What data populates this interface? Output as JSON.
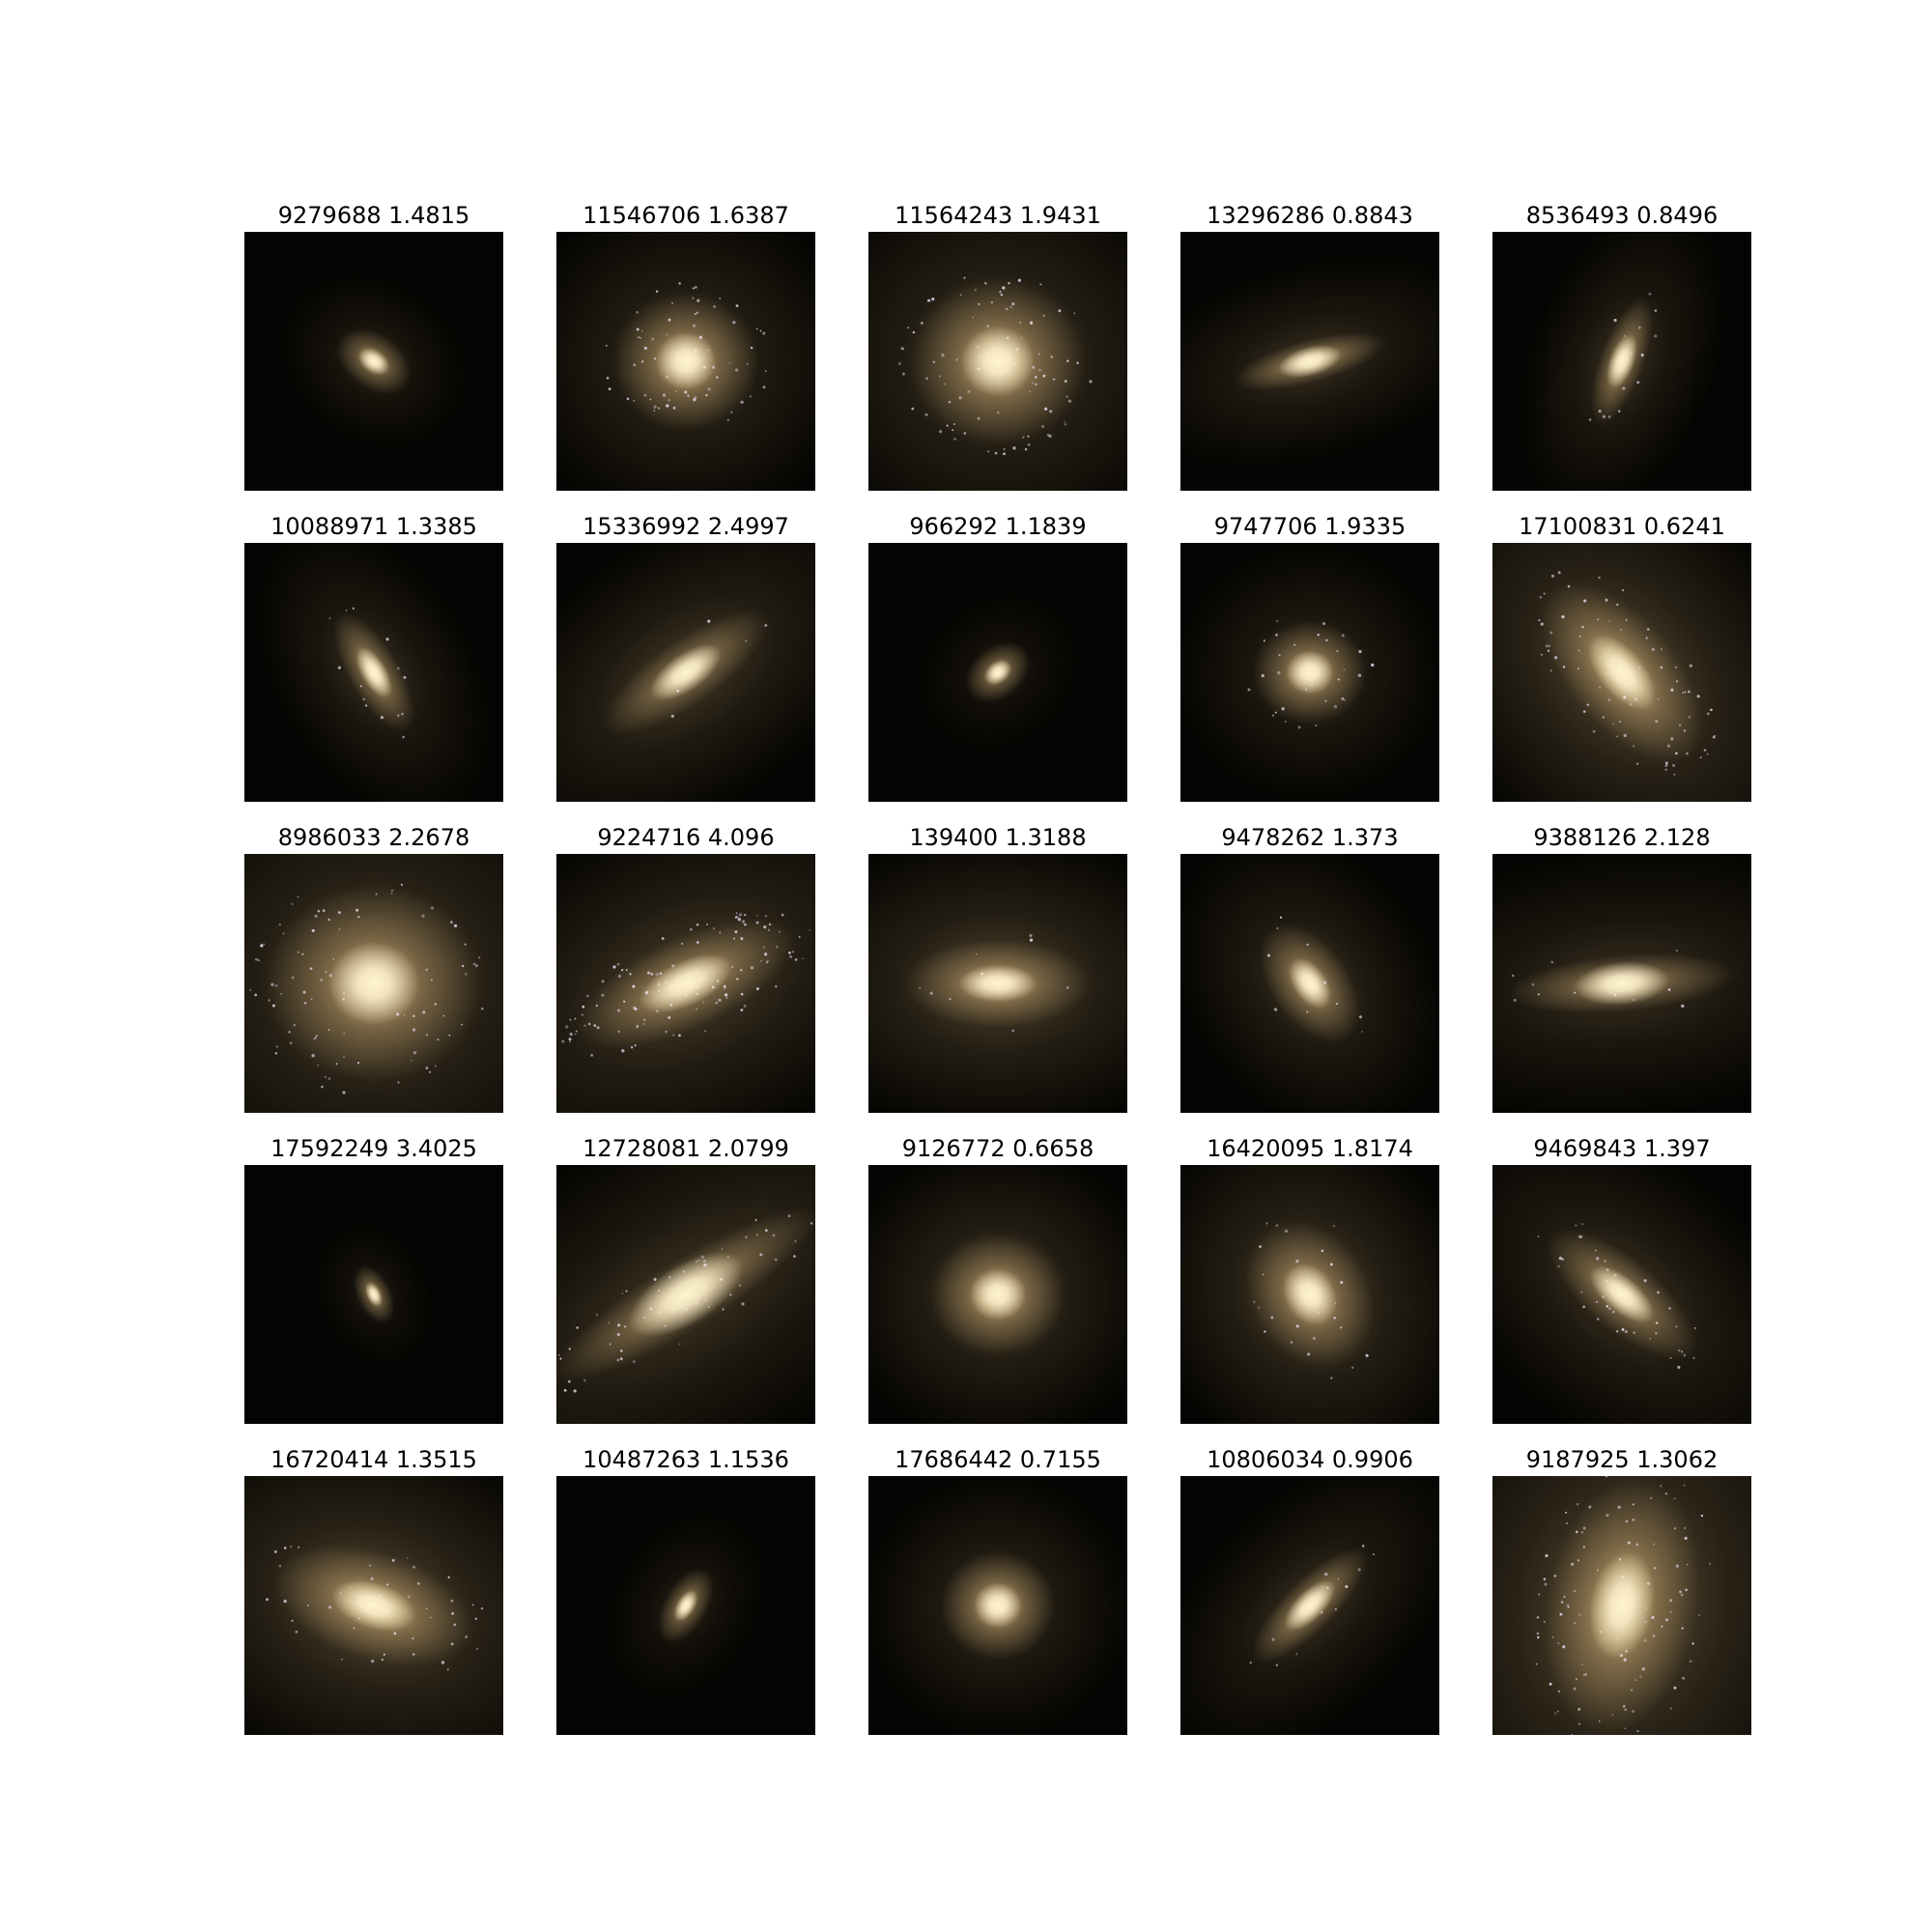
{
  "figure": {
    "columns": 5,
    "background_color": "#ffffff",
    "image_background_color": "#050402",
    "galaxy_core_color": "#fff4d0",
    "galaxy_glow_color": "#d8b67c",
    "star_cluster_color": "#e8dcf0"
  },
  "panels": [
    {
      "title": "9279688 1.4815",
      "galaxy": {
        "angle": -35,
        "size": 0.16,
        "elongation": 1.5,
        "brightness": 0.9,
        "halo": 0.35,
        "clumps": 0
      }
    },
    {
      "title": "11546706 1.6387",
      "galaxy": {
        "angle": 0,
        "size": 0.28,
        "elongation": 1.05,
        "brightness": 1.0,
        "halo": 0.55,
        "clumps": 70
      }
    },
    {
      "title": "11564243 1.9431",
      "galaxy": {
        "angle": 0,
        "size": 0.34,
        "elongation": 1.05,
        "brightness": 1.0,
        "halo": 0.6,
        "clumps": 90
      }
    },
    {
      "title": "13296286 0.8843",
      "galaxy": {
        "angle": 15,
        "size": 0.3,
        "elongation": 3.6,
        "brightness": 0.95,
        "halo": 0.45,
        "clumps": 0
      }
    },
    {
      "title": "8536493 0.8496",
      "galaxy": {
        "angle": 70,
        "size": 0.26,
        "elongation": 3.0,
        "brightness": 0.95,
        "halo": 0.45,
        "clumps": 15
      }
    },
    {
      "title": "10088971 1.3385",
      "galaxy": {
        "angle": -60,
        "size": 0.26,
        "elongation": 2.6,
        "brightness": 0.95,
        "halo": 0.45,
        "clumps": 15
      }
    },
    {
      "title": "15336992 2.4997",
      "galaxy": {
        "angle": 35,
        "size": 0.38,
        "elongation": 3.0,
        "brightness": 0.8,
        "halo": 0.55,
        "clumps": 5
      }
    },
    {
      "title": "966292 1.1839",
      "galaxy": {
        "angle": 40,
        "size": 0.14,
        "elongation": 1.4,
        "brightness": 0.9,
        "halo": 0.25,
        "clumps": 0
      }
    },
    {
      "title": "9747706 1.9335",
      "galaxy": {
        "angle": 0,
        "size": 0.22,
        "elongation": 1.1,
        "brightness": 1.0,
        "halo": 0.45,
        "clumps": 30
      }
    },
    {
      "title": "17100831 0.6241",
      "galaxy": {
        "angle": -50,
        "size": 0.42,
        "elongation": 2.0,
        "brightness": 1.0,
        "halo": 0.7,
        "clumps": 80
      }
    },
    {
      "title": "8986033 2.2678",
      "galaxy": {
        "angle": 0,
        "size": 0.42,
        "elongation": 1.1,
        "brightness": 0.95,
        "halo": 0.65,
        "clumps": 90
      }
    },
    {
      "title": "9224716 4.096",
      "galaxy": {
        "angle": 25,
        "size": 0.46,
        "elongation": 2.6,
        "brightness": 0.95,
        "halo": 0.6,
        "clumps": 120
      }
    },
    {
      "title": "139400 1.3188",
      "galaxy": {
        "angle": 0,
        "size": 0.36,
        "elongation": 2.1,
        "brightness": 0.95,
        "halo": 0.65,
        "clumps": 10
      }
    },
    {
      "title": "9478262 1.373",
      "galaxy": {
        "angle": -55,
        "size": 0.26,
        "elongation": 1.7,
        "brightness": 0.95,
        "halo": 0.5,
        "clumps": 10
      }
    },
    {
      "title": "9388126 2.128",
      "galaxy": {
        "angle": 5,
        "size": 0.44,
        "elongation": 4.0,
        "brightness": 0.85,
        "halo": 0.45,
        "clumps": 12
      }
    },
    {
      "title": "17592249 3.4025",
      "galaxy": {
        "angle": -65,
        "size": 0.12,
        "elongation": 1.8,
        "brightness": 0.9,
        "halo": 0.25,
        "clumps": 0
      }
    },
    {
      "title": "12728081 2.0799",
      "galaxy": {
        "angle": 32,
        "size": 0.6,
        "elongation": 4.5,
        "brightness": 0.85,
        "halo": 0.5,
        "clumps": 60
      }
    },
    {
      "title": "9126772 0.6658",
      "galaxy": {
        "angle": 0,
        "size": 0.26,
        "elongation": 1.1,
        "brightness": 1.0,
        "halo": 0.6,
        "clumps": 0
      }
    },
    {
      "title": "16420095 1.8174",
      "galaxy": {
        "angle": -60,
        "size": 0.3,
        "elongation": 1.3,
        "brightness": 0.95,
        "halo": 0.65,
        "clumps": 25
      }
    },
    {
      "title": "9469843 1.397",
      "galaxy": {
        "angle": -40,
        "size": 0.36,
        "elongation": 2.6,
        "brightness": 0.9,
        "halo": 0.5,
        "clumps": 40
      }
    },
    {
      "title": "16720414 1.3515",
      "galaxy": {
        "angle": -18,
        "size": 0.4,
        "elongation": 1.9,
        "brightness": 1.0,
        "halo": 0.7,
        "clumps": 45
      }
    },
    {
      "title": "10487263 1.1536",
      "galaxy": {
        "angle": 60,
        "size": 0.16,
        "elongation": 1.9,
        "brightness": 0.9,
        "halo": 0.3,
        "clumps": 0
      }
    },
    {
      "title": "17686442 0.7155",
      "galaxy": {
        "angle": 0,
        "size": 0.22,
        "elongation": 1.05,
        "brightness": 1.0,
        "halo": 0.5,
        "clumps": 0
      }
    },
    {
      "title": "10806034 0.9906",
      "galaxy": {
        "angle": 45,
        "size": 0.3,
        "elongation": 3.0,
        "brightness": 0.95,
        "halo": 0.45,
        "clumps": 15
      }
    },
    {
      "title": "9187925 1.3062",
      "galaxy": {
        "angle": 80,
        "size": 0.5,
        "elongation": 1.7,
        "brightness": 1.0,
        "halo": 0.75,
        "clumps": 110
      }
    }
  ]
}
